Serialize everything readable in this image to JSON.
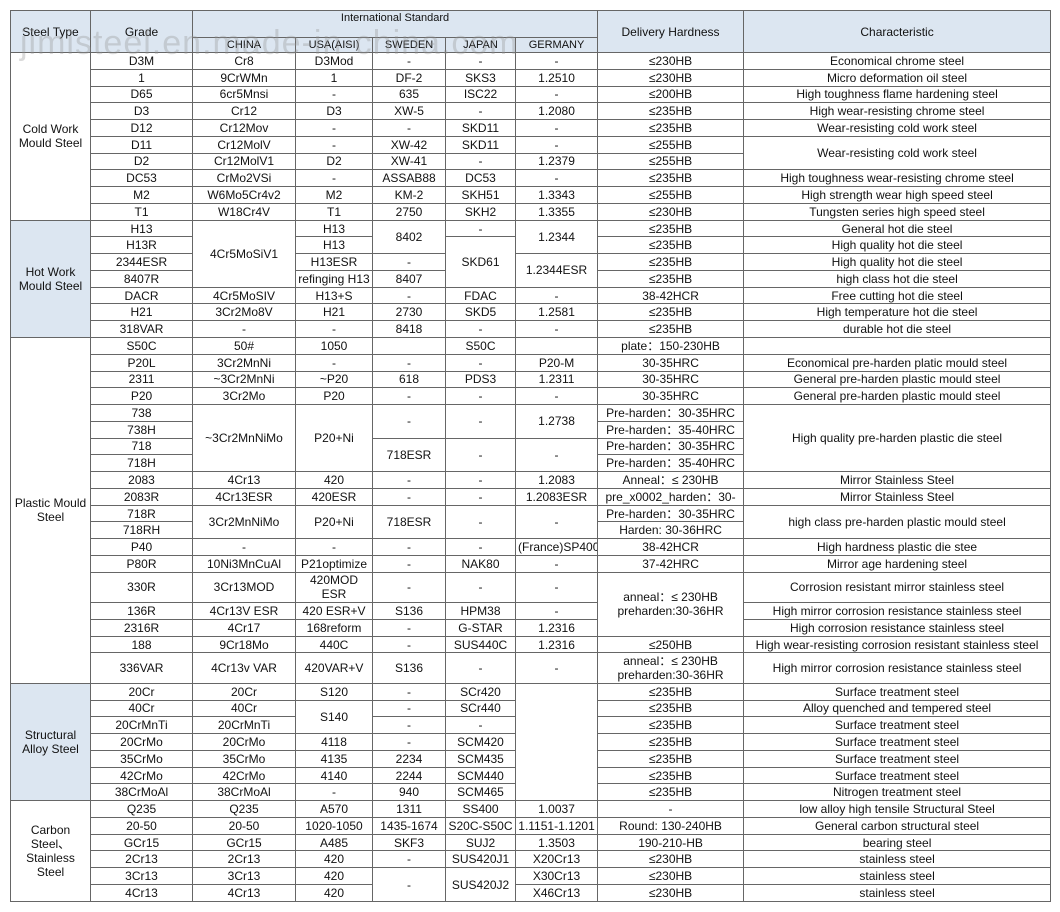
{
  "watermark": "jimisteel.en.made-in-china.com",
  "header": {
    "steel_type": "Steel Type",
    "grade": "Grade",
    "international_standard": "International Standard",
    "standards": [
      "CHINA",
      "USA(AISI)",
      "SWEDEN",
      "JAPAN",
      "GERMANY"
    ],
    "delivery_hardness": "Delivery Hardness",
    "characteristic": "Characteristic"
  },
  "rows": [
    [
      "Cold Work Mould Steel",
      "D3M",
      "Cr8",
      "D3Mod",
      "-",
      "-",
      "-",
      "≤230HB",
      "Economical chrome steel"
    ],
    [
      null,
      "1",
      "9CrWMn",
      "1",
      "DF-2",
      "SKS3",
      "1.2510",
      "≤230HB",
      "Micro deformation oil steel"
    ],
    [
      null,
      "D65",
      "6cr5Mnsi",
      "-",
      "635",
      "ISC22",
      "-",
      "≤200HB",
      "High toughness flame hardening steel"
    ],
    [
      null,
      "D3",
      "Cr12",
      "D3",
      "XW-5",
      "-",
      "1.2080",
      "≤235HB",
      "High wear-resisting chrome steel"
    ],
    [
      null,
      "D12",
      "Cr12Mov",
      "-",
      "-",
      "SKD11",
      "-",
      "≤235HB",
      "Wear-resisting cold work steel"
    ],
    [
      null,
      "D11",
      "Cr12MolV",
      "-",
      "XW-42",
      "SKD11",
      "-",
      "≤255HB",
      "Wear-resisting cold work steel"
    ],
    [
      null,
      "D2",
      "Cr12MolV1",
      "D2",
      "XW-41",
      "-",
      "1.2379",
      "≤255HB",
      null
    ],
    [
      null,
      "DC53",
      "CrMo2VSi",
      "-",
      "ASSAB88",
      "DC53",
      "-",
      "≤235HB",
      "High toughness wear-resisting chrome steel"
    ],
    [
      null,
      "M2",
      "W6Mo5Cr4v2",
      "M2",
      "KM-2",
      "SKH51",
      "1.3343",
      "≤255HB",
      "High strength wear high speed steel"
    ],
    [
      null,
      "T1",
      "W18Cr4V",
      "T1",
      "2750",
      "SKH2",
      "1.3355",
      "≤230HB",
      "Tungsten series high speed steel"
    ],
    [
      "Hot Work Mould Steel",
      "H13",
      "4Cr5MoSiV1",
      "H13",
      "8402",
      "-",
      "1.2344",
      "≤235HB",
      "General hot die steel"
    ],
    [
      null,
      "H13R",
      null,
      "H13",
      null,
      "SKD61",
      null,
      "≤235HB",
      "High quality hot die steel"
    ],
    [
      null,
      "2344ESR",
      null,
      "H13ESR",
      "-",
      null,
      "1.2344ESR",
      "≤235HB",
      "High quality hot die steel"
    ],
    [
      null,
      "8407R",
      null,
      "refinging H13",
      "8407",
      null,
      null,
      "≤235HB",
      "high class hot die steel"
    ],
    [
      null,
      "DACR",
      "4Cr5MoSIV",
      "H13+S",
      "-",
      "FDAC",
      "-",
      "38-42HCR",
      "Free cutting hot die steel"
    ],
    [
      null,
      "H21",
      "3Cr2Mo8V",
      "H21",
      "2730",
      "SKD5",
      "1.2581",
      "≤235HB",
      "High temperature hot die steel"
    ],
    [
      null,
      "318VAR",
      "-",
      "-",
      "8418",
      "-",
      "-",
      "≤235HB",
      "durable hot die steel"
    ],
    [
      "Plastic Mould Steel",
      "S50C",
      "50#",
      "1050",
      null,
      "S50C",
      null,
      "plate：150-230HB",
      null
    ],
    [
      null,
      "P20L",
      "3Cr2MnNi",
      "-",
      "-",
      "-",
      "P20-M",
      "30-35HRC",
      "Economical pre-harden platic mould steel"
    ],
    [
      null,
      "2311",
      "~3Cr2MnNi",
      "~P20",
      "618",
      "PDS3",
      "1.2311",
      "30-35HRC",
      "General pre-harden plastic mould steel"
    ],
    [
      null,
      "P20",
      "3Cr2Mo",
      "P20",
      "-",
      "-",
      "-",
      "30-35HRC",
      "General pre-harden plastic mould steel"
    ],
    [
      null,
      "738",
      "~3Cr2MnNiMo",
      "P20+Ni",
      "-",
      "-",
      "1.2738",
      "Pre-harden：30-35HRC",
      "High quality pre-harden plastic die steel"
    ],
    [
      null,
      "738H",
      null,
      null,
      null,
      null,
      null,
      "Pre-harden：35-40HRC",
      null
    ],
    [
      null,
      "718",
      null,
      null,
      "718ESR",
      "-",
      "-",
      "Pre-harden：30-35HRC",
      null
    ],
    [
      null,
      "718H",
      null,
      null,
      null,
      null,
      null,
      "Pre-harden：35-40HRC",
      null
    ],
    [
      null,
      "2083",
      "4Cr13",
      "420",
      "-",
      "-",
      "1.2083",
      "Anneal：≤ 230HB",
      "Mirror Stainless Steel"
    ],
    [
      null,
      "2083R",
      "4Cr13ESR",
      "420ESR",
      "-",
      "-",
      "1.2083ESR",
      "pre_x0002_harden：30-",
      "Mirror Stainless Steel"
    ],
    [
      null,
      "718R",
      "3Cr2MnNiMo",
      "P20+Ni",
      "718ESR",
      "-",
      "-",
      "Pre-harden：30-35HRC",
      "high class pre-harden plastic mould steel"
    ],
    [
      null,
      "718RH",
      null,
      null,
      null,
      null,
      null,
      "Harden: 30-36HRC",
      null
    ],
    [
      null,
      "P40",
      "-",
      "-",
      "-",
      "-",
      "(France)SP400",
      "38-42HCR",
      "High hardness plastic die stee"
    ],
    [
      null,
      "P80R",
      "10Ni3MnCuAl",
      "P21optimize",
      "-",
      "NAK80",
      "-",
      "37-42HRC",
      "Mirror age hardening steel"
    ],
    [
      null,
      "330R",
      "3Cr13MOD",
      "420MOD ESR",
      "-",
      "-",
      "-",
      "anneal：≤ 230HB\npreharden:30-36HR",
      "Corrosion resistant mirror stainless steel"
    ],
    [
      null,
      "136R",
      "4Cr13V ESR",
      "420 ESR+V",
      "S136",
      "HPM38",
      "-",
      null,
      "High mirror corrosion resistance stainless steel"
    ],
    [
      null,
      "2316R",
      "4Cr17",
      "168reform",
      "-",
      "G-STAR",
      "1.2316",
      null,
      "High corrosion resistance stainless steel"
    ],
    [
      null,
      "188",
      "9Cr18Mo",
      "440C",
      "-",
      "SUS440C",
      "1.2316",
      "≤250HB",
      "High wear-resisting corrosion resistant stainless steel"
    ],
    [
      null,
      "336VAR",
      "4Cr13v VAR",
      "420VAR+V",
      "S136",
      "-",
      "-",
      "anneal：≤ 230HB\npreharden:30-36HR",
      "High mirror corrosion resistance stainless steel"
    ],
    [
      "Structural Alloy Steel",
      "20Cr",
      "20Cr",
      "S120",
      "-",
      "SCr420",
      null,
      "≤235HB",
      "Surface treatment steel"
    ],
    [
      null,
      "40Cr",
      "40Cr",
      "S140",
      "-",
      "SCr440",
      null,
      "≤235HB",
      "Alloy quenched and tempered steel"
    ],
    [
      null,
      "20CrMnTi",
      "20CrMnTi",
      null,
      "-",
      "-",
      null,
      "≤235HB",
      "Surface treatment steel"
    ],
    [
      null,
      "20CrMo",
      "20CrMo",
      "4118",
      "-",
      "SCM420",
      null,
      "≤235HB",
      "Surface treatment steel"
    ],
    [
      null,
      "35CrMo",
      "35CrMo",
      "4135",
      "2234",
      "SCM435",
      null,
      "≤235HB",
      "Surface treatment steel"
    ],
    [
      null,
      "42CrMo",
      "42CrMo",
      "4140",
      "2244",
      "SCM440",
      null,
      "≤235HB",
      "Surface treatment steel"
    ],
    [
      null,
      "38CrMoAl",
      "38CrMoAl",
      "-",
      "940",
      "SCM465",
      null,
      "≤235HB",
      "Nitrogen treatment steel"
    ],
    [
      "Carbon Steel、Stainless Steel",
      "Q235",
      "Q235",
      "A570",
      "1311",
      "SS400",
      "1.0037",
      "-",
      "low alloy high tensile Structural Steel"
    ],
    [
      null,
      "20-50",
      "20-50",
      "1020-1050",
      "1435-1674",
      "S20C-S50C",
      "1.1151-1.1201",
      "Round: 130-240HB",
      "General carbon structural steel"
    ],
    [
      null,
      "GCr15",
      "GCr15",
      "A485",
      "SKF3",
      "SUJ2",
      "1.3503",
      "190-210-HB",
      "bearing steel"
    ],
    [
      null,
      "2Cr13",
      "2Cr13",
      "420",
      "-",
      "SUS420J1",
      "X20Cr13",
      "≤230HB",
      "stainless steel"
    ],
    [
      null,
      "3Cr13",
      "3Cr13",
      "420",
      "-",
      "SUS420J2",
      "X30Cr13",
      "≤230HB",
      "stainless steel"
    ],
    [
      null,
      "4Cr13",
      "4Cr13",
      "420",
      null,
      null,
      "X46Cr13",
      "≤230HB",
      "stainless steel"
    ]
  ]
}
